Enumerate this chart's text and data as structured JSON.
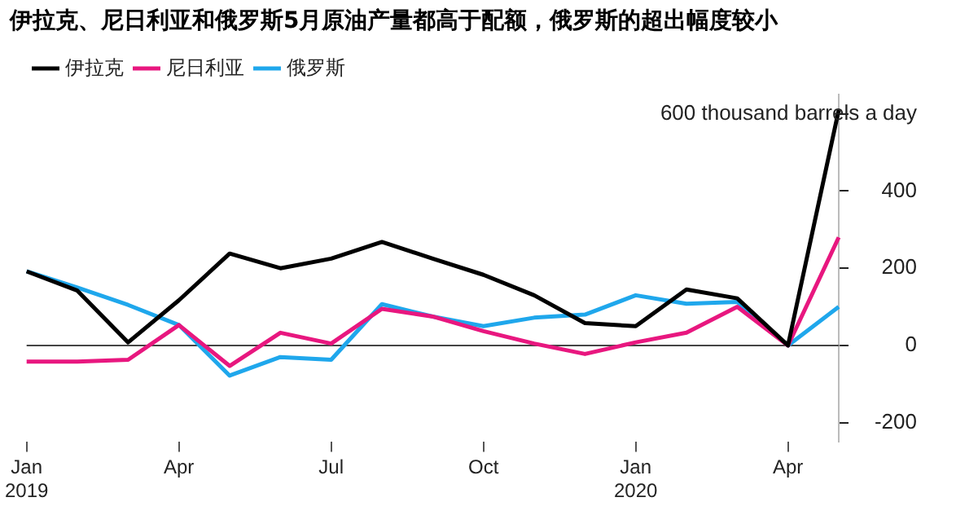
{
  "chart_data": {
    "type": "line",
    "title": "伊拉克、尼日利亚和俄罗斯5月原油产量都高于配额，俄罗斯的超出幅度较小",
    "categories": [
      "Jan\n2019",
      null,
      null,
      "Apr",
      null,
      null,
      "Jul",
      null,
      null,
      "Oct",
      null,
      null,
      "Jan\n2020",
      null,
      null,
      "Apr",
      null
    ],
    "series": [
      {
        "name": "伊拉克",
        "color": "#000000",
        "values": [
          192,
          142,
          8,
          117,
          238,
          200,
          225,
          268,
          225,
          183,
          130,
          58,
          50,
          145,
          122,
          0,
          610
        ]
      },
      {
        "name": "尼日利亚",
        "color": "#e8177f",
        "values": [
          -42,
          -42,
          -37,
          53,
          -53,
          33,
          5,
          95,
          75,
          37,
          5,
          -22,
          8,
          33,
          100,
          0,
          280
        ]
      },
      {
        "name": "俄罗斯",
        "color": "#1fa7ec",
        "values": [
          192,
          150,
          105,
          53,
          -78,
          -30,
          -37,
          107,
          75,
          50,
          72,
          80,
          130,
          108,
          113,
          0,
          100
        ]
      }
    ],
    "ylim": [
      -250,
      650
    ],
    "yticks": [
      {
        "value": -200,
        "label": "-200"
      },
      0,
      200,
      400,
      {
        "value": 600,
        "label": "600 thousand barrels a day"
      }
    ],
    "ref_lines": [
      {
        "axis": "y",
        "value": 0,
        "color": "#444444"
      }
    ],
    "grid": false,
    "legend": "top left",
    "marker": "none",
    "line_style": "solid"
  }
}
